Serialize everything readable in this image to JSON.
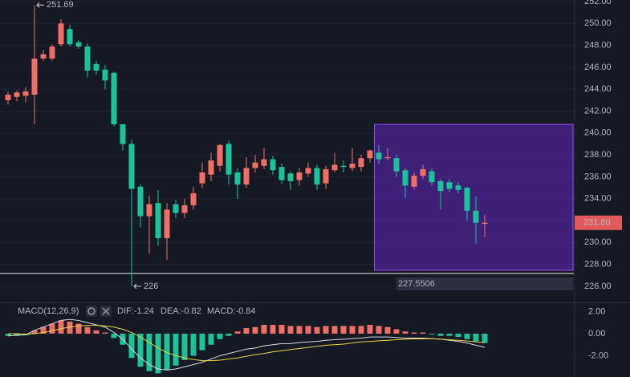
{
  "chart_data": [
    {
      "type": "candlestick",
      "open": [
        243.0,
        243.3,
        243.4,
        243.5,
        246.8,
        246.8,
        248.1,
        249.5,
        248.3,
        247.9,
        246.3,
        245.8,
        245.5,
        240.8,
        239.0,
        235.1,
        232.4,
        233.6,
        230.4,
        233.5,
        232.7,
        233.4,
        235.4,
        236.2,
        237.0,
        239.0,
        236.4,
        235.3,
        236.8,
        237.0,
        237.6,
        236.9,
        236.3,
        235.7,
        236.3,
        236.8,
        235.4,
        236.6,
        237.0,
        236.8,
        236.9,
        237.7,
        238.2,
        237.7,
        237.7,
        236.6,
        235.1,
        236.1,
        236.5,
        235.6,
        235.5,
        235.2,
        235.0,
        232.9,
        231.7
      ],
      "high": [
        243.8,
        243.9,
        244.2,
        251.69,
        247.6,
        248.1,
        250.4,
        249.9,
        248.5,
        248.2,
        246.6,
        246.2,
        245.6,
        240.8,
        239.4,
        235.3,
        234.3,
        234.8,
        233.6,
        233.9,
        234.0,
        235.1,
        237.3,
        238.2,
        239.0,
        239.3,
        236.8,
        237.8,
        238.0,
        238.6,
        237.9,
        237.2,
        236.5,
        236.8,
        237.3,
        237.1,
        237.0,
        238.2,
        237.5,
        238.6,
        238.0,
        238.5,
        238.9,
        238.6,
        238.0,
        236.8,
        236.4,
        237.1,
        236.8,
        235.8,
        235.8,
        235.5,
        235.1,
        234.2,
        232.5
      ],
      "low": [
        242.6,
        242.9,
        242.8,
        240.8,
        246.6,
        246.6,
        247.9,
        247.9,
        247.7,
        245.1,
        245.3,
        244.0,
        240.6,
        238.4,
        226.0,
        231.4,
        229.0,
        229.7,
        228.4,
        232.2,
        232.2,
        233.0,
        235.0,
        235.6,
        236.5,
        235.3,
        234.0,
        235.0,
        236.4,
        236.7,
        236.2,
        235.3,
        234.8,
        235.2,
        236.0,
        234.8,
        234.9,
        236.4,
        236.4,
        236.5,
        236.5,
        237.3,
        237.2,
        237.5,
        236.0,
        234.1,
        234.8,
        235.8,
        235.2,
        233.0,
        234.6,
        234.5,
        232.0,
        229.9,
        230.5
      ],
      "close": [
        243.5,
        243.7,
        243.8,
        246.8,
        247.2,
        247.9,
        250.0,
        248.1,
        247.9,
        245.7,
        245.7,
        244.8,
        240.8,
        239.0,
        234.9,
        232.4,
        233.5,
        230.4,
        233.0,
        232.7,
        233.4,
        234.5,
        236.4,
        237.5,
        238.9,
        236.2,
        235.3,
        236.8,
        237.3,
        237.6,
        236.6,
        235.7,
        235.6,
        236.4,
        236.8,
        235.3,
        236.7,
        237.1,
        236.9,
        237.2,
        237.7,
        238.4,
        237.6,
        237.8,
        236.5,
        235.2,
        236.1,
        236.7,
        235.5,
        234.7,
        234.9,
        234.8,
        232.9,
        231.8,
        231.8
      ],
      "up_color": "#ef6f66",
      "down_color": "#1bc29a",
      "max_label": "251.69",
      "min_label": "226",
      "last_price_label": "231.80",
      "hline": 227.17,
      "box_range": [
        227.46,
        240.79
      ],
      "box_label": "227.5506",
      "ylim": [
        224.6,
        252.15
      ],
      "yticks": [
        {
          "value": 226,
          "label": "226.00"
        },
        {
          "value": 228,
          "label": "228.00"
        },
        {
          "value": 230,
          "label": "230.00"
        },
        {
          "value": 232,
          "label": "232.00"
        },
        {
          "value": 234,
          "label": "234.00"
        },
        {
          "value": 236,
          "label": "236.00"
        },
        {
          "value": 238,
          "label": "238.00"
        },
        {
          "value": 240,
          "label": "240.00"
        },
        {
          "value": 242,
          "label": "242.00"
        },
        {
          "value": 244,
          "label": "244.00"
        },
        {
          "value": 246,
          "label": "246.00"
        },
        {
          "value": 248,
          "label": "248.00"
        },
        {
          "value": 250,
          "label": "250.00"
        },
        {
          "value": 252,
          "label": "252.00"
        }
      ],
      "grid": true
    },
    {
      "type": "macd",
      "title": "MACD(12,26,9)",
      "series": [
        {
          "name": "DIF:-1.24",
          "color": "#d8d8e0",
          "values": [
            -0.2,
            -0.15,
            -0.1,
            0.3,
            0.6,
            0.9,
            1.2,
            1.3,
            1.2,
            1.0,
            0.8,
            0.6,
            0.1,
            -0.5,
            -1.4,
            -2.2,
            -2.8,
            -3.2,
            -3.3,
            -3.2,
            -3.0,
            -2.8,
            -2.6,
            -2.3,
            -2.0,
            -1.8,
            -1.6,
            -1.4,
            -1.3,
            -1.1,
            -1.0,
            -0.9,
            -0.9,
            -0.8,
            -0.75,
            -0.7,
            -0.6,
            -0.55,
            -0.5,
            -0.45,
            -0.4,
            -0.3,
            -0.3,
            -0.3,
            -0.35,
            -0.4,
            -0.4,
            -0.4,
            -0.45,
            -0.5,
            -0.6,
            -0.7,
            -0.85,
            -1.05,
            -1.24
          ]
        },
        {
          "name": "DEA:-0.82",
          "color": "#f0d43a",
          "values": [
            0.0,
            0.0,
            -0.05,
            0.0,
            0.1,
            0.25,
            0.45,
            0.6,
            0.7,
            0.75,
            0.75,
            0.7,
            0.6,
            0.4,
            0.1,
            -0.3,
            -0.8,
            -1.3,
            -1.7,
            -2.0,
            -2.2,
            -2.35,
            -2.45,
            -2.45,
            -2.4,
            -2.3,
            -2.2,
            -2.05,
            -1.9,
            -1.8,
            -1.65,
            -1.55,
            -1.45,
            -1.35,
            -1.25,
            -1.15,
            -1.05,
            -1.0,
            -0.95,
            -0.85,
            -0.75,
            -0.7,
            -0.65,
            -0.6,
            -0.55,
            -0.5,
            -0.48,
            -0.47,
            -0.46,
            -0.5,
            -0.55,
            -0.6,
            -0.67,
            -0.74,
            -0.82
          ]
        },
        {
          "name": "MACD:-0.84",
          "color": "#1bc29a",
          "histogram": true,
          "values": [
            -0.2,
            -0.2,
            -0.15,
            0.3,
            0.6,
            0.9,
            1.2,
            1.1,
            0.9,
            0.6,
            0.3,
            0.1,
            -0.4,
            -1.0,
            -2.2,
            -3.0,
            -3.4,
            -3.6,
            -3.3,
            -2.9,
            -2.4,
            -2.0,
            -1.5,
            -1.0,
            -0.5,
            -0.2,
            0.2,
            0.5,
            0.6,
            0.8,
            0.8,
            0.8,
            0.7,
            0.7,
            0.7,
            0.6,
            0.7,
            0.7,
            0.7,
            0.7,
            0.7,
            0.8,
            0.7,
            0.6,
            0.4,
            0.2,
            0.1,
            0.1,
            -0.05,
            -0.2,
            -0.2,
            -0.3,
            -0.5,
            -0.7,
            -0.84
          ]
        }
      ],
      "up_color": "#ef6f66",
      "down_color": "#1bc29a",
      "ylim": [
        -3.93,
        2.76
      ],
      "yticks": [
        {
          "value": 2,
          "label": "2.00"
        },
        {
          "value": 0,
          "label": "0.00"
        },
        {
          "value": -2,
          "label": "-2.00"
        }
      ]
    }
  ]
}
